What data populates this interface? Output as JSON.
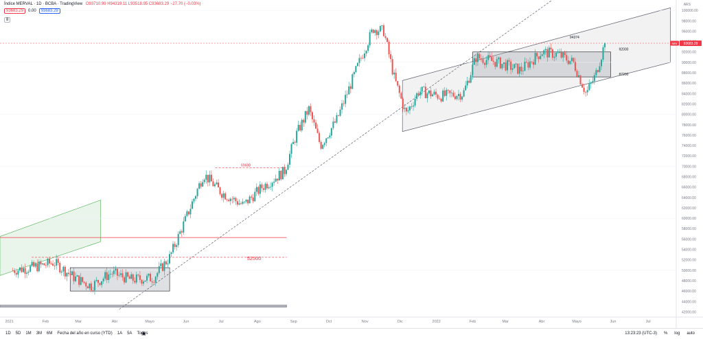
{
  "header": {
    "symbol": "Índice MERVAL · 1D · BCBA · TradingView",
    "ohlc": "O93710.99 H94319.11 L93518.95 C93683.29 −27.70 (−0.03%)",
    "price_box_1": "93683.29",
    "price_box_mid": "0.00",
    "price_box_2": "93683.29",
    "indicator_toggle": "8",
    "currency": "ARS"
  },
  "footer": {
    "timeframes": [
      "1D",
      "5D",
      "1M",
      "3M",
      "6M",
      "Fecha del año en curso (YTD)",
      "1A",
      "5A",
      "Todos"
    ],
    "calendar_icon": "calendar-icon",
    "time": "13:23:23 (UTC-3)",
    "percent": "%",
    "log": "log",
    "auto": "auto"
  },
  "chart_data": {
    "type": "candlestick",
    "title": "Índice MERVAL",
    "x_axis_labels": [
      "2021",
      "Feb",
      "Mar",
      "Abr",
      "Mayo",
      "Jun",
      "Jul",
      "Ago",
      "Sep",
      "Oct",
      "Nov",
      "Dic",
      "2022",
      "Feb",
      "Mar",
      "Abr",
      "Mayo",
      "Jun",
      "Jul"
    ],
    "y_ticks": [
      42000,
      44000,
      46000,
      48000,
      50000,
      52000,
      54000,
      56000,
      58000,
      60000,
      62000,
      64000,
      66000,
      68000,
      70000,
      72000,
      74000,
      76000,
      78000,
      80000,
      82000,
      84000,
      86000,
      88000,
      90000,
      92000,
      94000,
      96000,
      98000,
      100000
    ],
    "ylim": [
      41000,
      102000
    ],
    "last_price": 93683.29,
    "last_price_label": "93683.29",
    "last_price_tag": "IMV",
    "annotations": [
      {
        "text": "94374",
        "value": 94374
      },
      {
        "text": "92000",
        "value": 92000
      },
      {
        "text": "87200",
        "value": 87200
      },
      {
        "text": "69688",
        "value": 69688
      },
      {
        "text": "52500",
        "value": 52500
      }
    ],
    "key_prices": [
      {
        "date": "2021-01-04",
        "price": 50000
      },
      {
        "date": "2021-01-20",
        "price": 50500
      },
      {
        "date": "2021-02-08",
        "price": 51500
      },
      {
        "date": "2021-02-26",
        "price": 48500
      },
      {
        "date": "2021-03-12",
        "price": 47000
      },
      {
        "date": "2021-03-29",
        "price": 49500
      },
      {
        "date": "2021-04-15",
        "price": 48200
      },
      {
        "date": "2021-05-04",
        "price": 48500
      },
      {
        "date": "2021-05-18",
        "price": 52500
      },
      {
        "date": "2021-06-01",
        "price": 60000
      },
      {
        "date": "2021-06-16",
        "price": 68500
      },
      {
        "date": "2021-07-01",
        "price": 65000
      },
      {
        "date": "2021-07-20",
        "price": 62500
      },
      {
        "date": "2021-08-05",
        "price": 66000
      },
      {
        "date": "2021-08-24",
        "price": 69000
      },
      {
        "date": "2021-09-03",
        "price": 76000
      },
      {
        "date": "2021-09-14",
        "price": 81000
      },
      {
        "date": "2021-09-24",
        "price": 74000
      },
      {
        "date": "2021-10-08",
        "price": 79000
      },
      {
        "date": "2021-10-27",
        "price": 90000
      },
      {
        "date": "2021-11-08",
        "price": 96500
      },
      {
        "date": "2021-11-17",
        "price": 96000
      },
      {
        "date": "2021-11-26",
        "price": 87000
      },
      {
        "date": "2021-12-06",
        "price": 80000
      },
      {
        "date": "2021-12-17",
        "price": 84500
      },
      {
        "date": "2022-01-04",
        "price": 83500
      },
      {
        "date": "2022-01-24",
        "price": 84000
      },
      {
        "date": "2022-02-04",
        "price": 91000
      },
      {
        "date": "2022-02-22",
        "price": 90000
      },
      {
        "date": "2022-03-14",
        "price": 88500
      },
      {
        "date": "2022-04-01",
        "price": 92000
      },
      {
        "date": "2022-04-15",
        "price": 91500
      },
      {
        "date": "2022-04-28",
        "price": 90000
      },
      {
        "date": "2022-05-09",
        "price": 84000
      },
      {
        "date": "2022-05-17",
        "price": 87500
      },
      {
        "date": "2022-05-25",
        "price": 93683
      }
    ],
    "support_boxes": [
      {
        "from": "2021-02-22",
        "to": "2021-05-18",
        "low": 46000,
        "high": 50500
      },
      {
        "from": "2022-02-01",
        "to": "2022-05-30",
        "low": 87200,
        "high": 92000
      }
    ],
    "colors": {
      "up": "#26a69a",
      "down": "#ef5350",
      "trend": "#5d606b",
      "channel_fill": "#e8e8ea",
      "support_line": "#f23645",
      "last_price": "#f23645"
    }
  }
}
